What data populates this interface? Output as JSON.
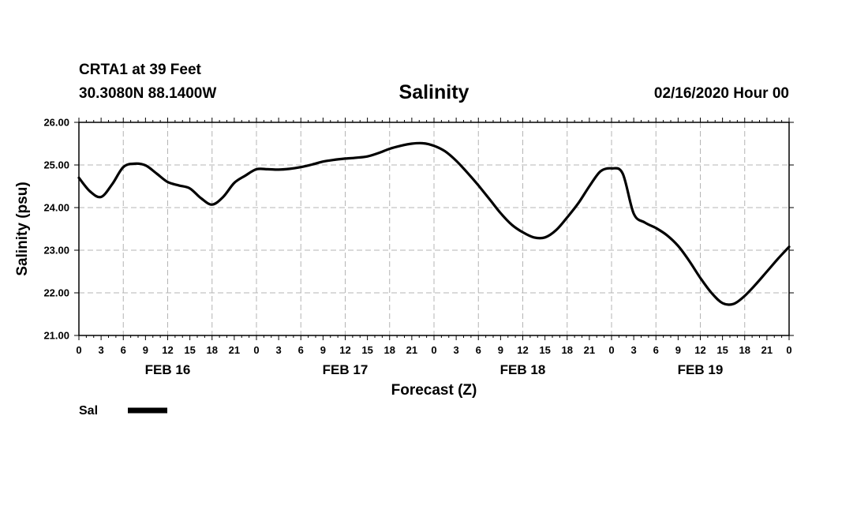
{
  "header": {
    "station": "CRTA1 at 39 Feet",
    "coords": "30.3080N 88.1400W",
    "datetime": "02/16/2020 Hour 00"
  },
  "chart_data": {
    "type": "line",
    "title": "Salinity",
    "xlabel": "Forecast (Z)",
    "ylabel": "Salinity (psu)",
    "ylim": [
      21,
      26
    ],
    "xlim": [
      0,
      96
    ],
    "x_unit": "hours since 02/16/2020 00Z",
    "yticks": [
      "21.00",
      "22.00",
      "23.00",
      "24.00",
      "25.00",
      "26.00"
    ],
    "xtick_labels": [
      "0",
      "3",
      "6",
      "9",
      "12",
      "15",
      "18",
      "21",
      "0",
      "3",
      "6",
      "9",
      "12",
      "15",
      "18",
      "21",
      "0",
      "3",
      "6",
      "9",
      "12",
      "15",
      "18",
      "21",
      "0",
      "3",
      "6",
      "9",
      "12",
      "15",
      "18",
      "21",
      "0"
    ],
    "day_labels": [
      {
        "label": "FEB 16",
        "center_hour": 12
      },
      {
        "label": "FEB 17",
        "center_hour": 36
      },
      {
        "label": "FEB 18",
        "center_hour": 60
      },
      {
        "label": "FEB 19",
        "center_hour": 84
      }
    ],
    "grid": true,
    "series": [
      {
        "name": "Sal",
        "color": "#000000",
        "x": [
          0,
          1.5,
          3,
          4.5,
          6,
          7.5,
          9,
          10.5,
          12,
          13.5,
          15,
          16.5,
          18,
          19.5,
          21,
          22.5,
          24,
          25.5,
          27,
          28.5,
          30,
          31.5,
          33,
          34.5,
          36,
          37.5,
          39,
          40.5,
          42,
          43.5,
          45,
          46.5,
          48,
          49.5,
          51,
          52.5,
          54,
          55.5,
          57,
          58.5,
          60,
          61.5,
          63,
          64.5,
          66,
          67.5,
          69,
          70.5,
          72,
          73.5,
          75,
          76.5,
          78,
          79.5,
          81,
          82.5,
          84,
          85.5,
          87,
          88.5,
          90,
          91.5,
          93,
          94.5,
          96
        ],
        "y": [
          24.7,
          24.38,
          24.25,
          24.55,
          24.95,
          25.03,
          24.99,
          24.8,
          24.6,
          24.52,
          24.45,
          24.22,
          24.07,
          24.25,
          24.58,
          24.75,
          24.9,
          24.9,
          24.89,
          24.91,
          24.95,
          25.01,
          25.08,
          25.12,
          25.15,
          25.17,
          25.2,
          25.28,
          25.38,
          25.45,
          25.5,
          25.51,
          25.45,
          25.32,
          25.1,
          24.82,
          24.52,
          24.2,
          23.87,
          23.6,
          23.42,
          23.3,
          23.3,
          23.47,
          23.77,
          24.1,
          24.5,
          24.85,
          24.92,
          24.8,
          23.86,
          23.65,
          23.52,
          23.35,
          23.1,
          22.75,
          22.35,
          22.0,
          21.76,
          21.74,
          21.93,
          22.2,
          22.5,
          22.8,
          23.08
        ]
      }
    ]
  },
  "legend": {
    "label": "Sal",
    "color": "#000000"
  }
}
